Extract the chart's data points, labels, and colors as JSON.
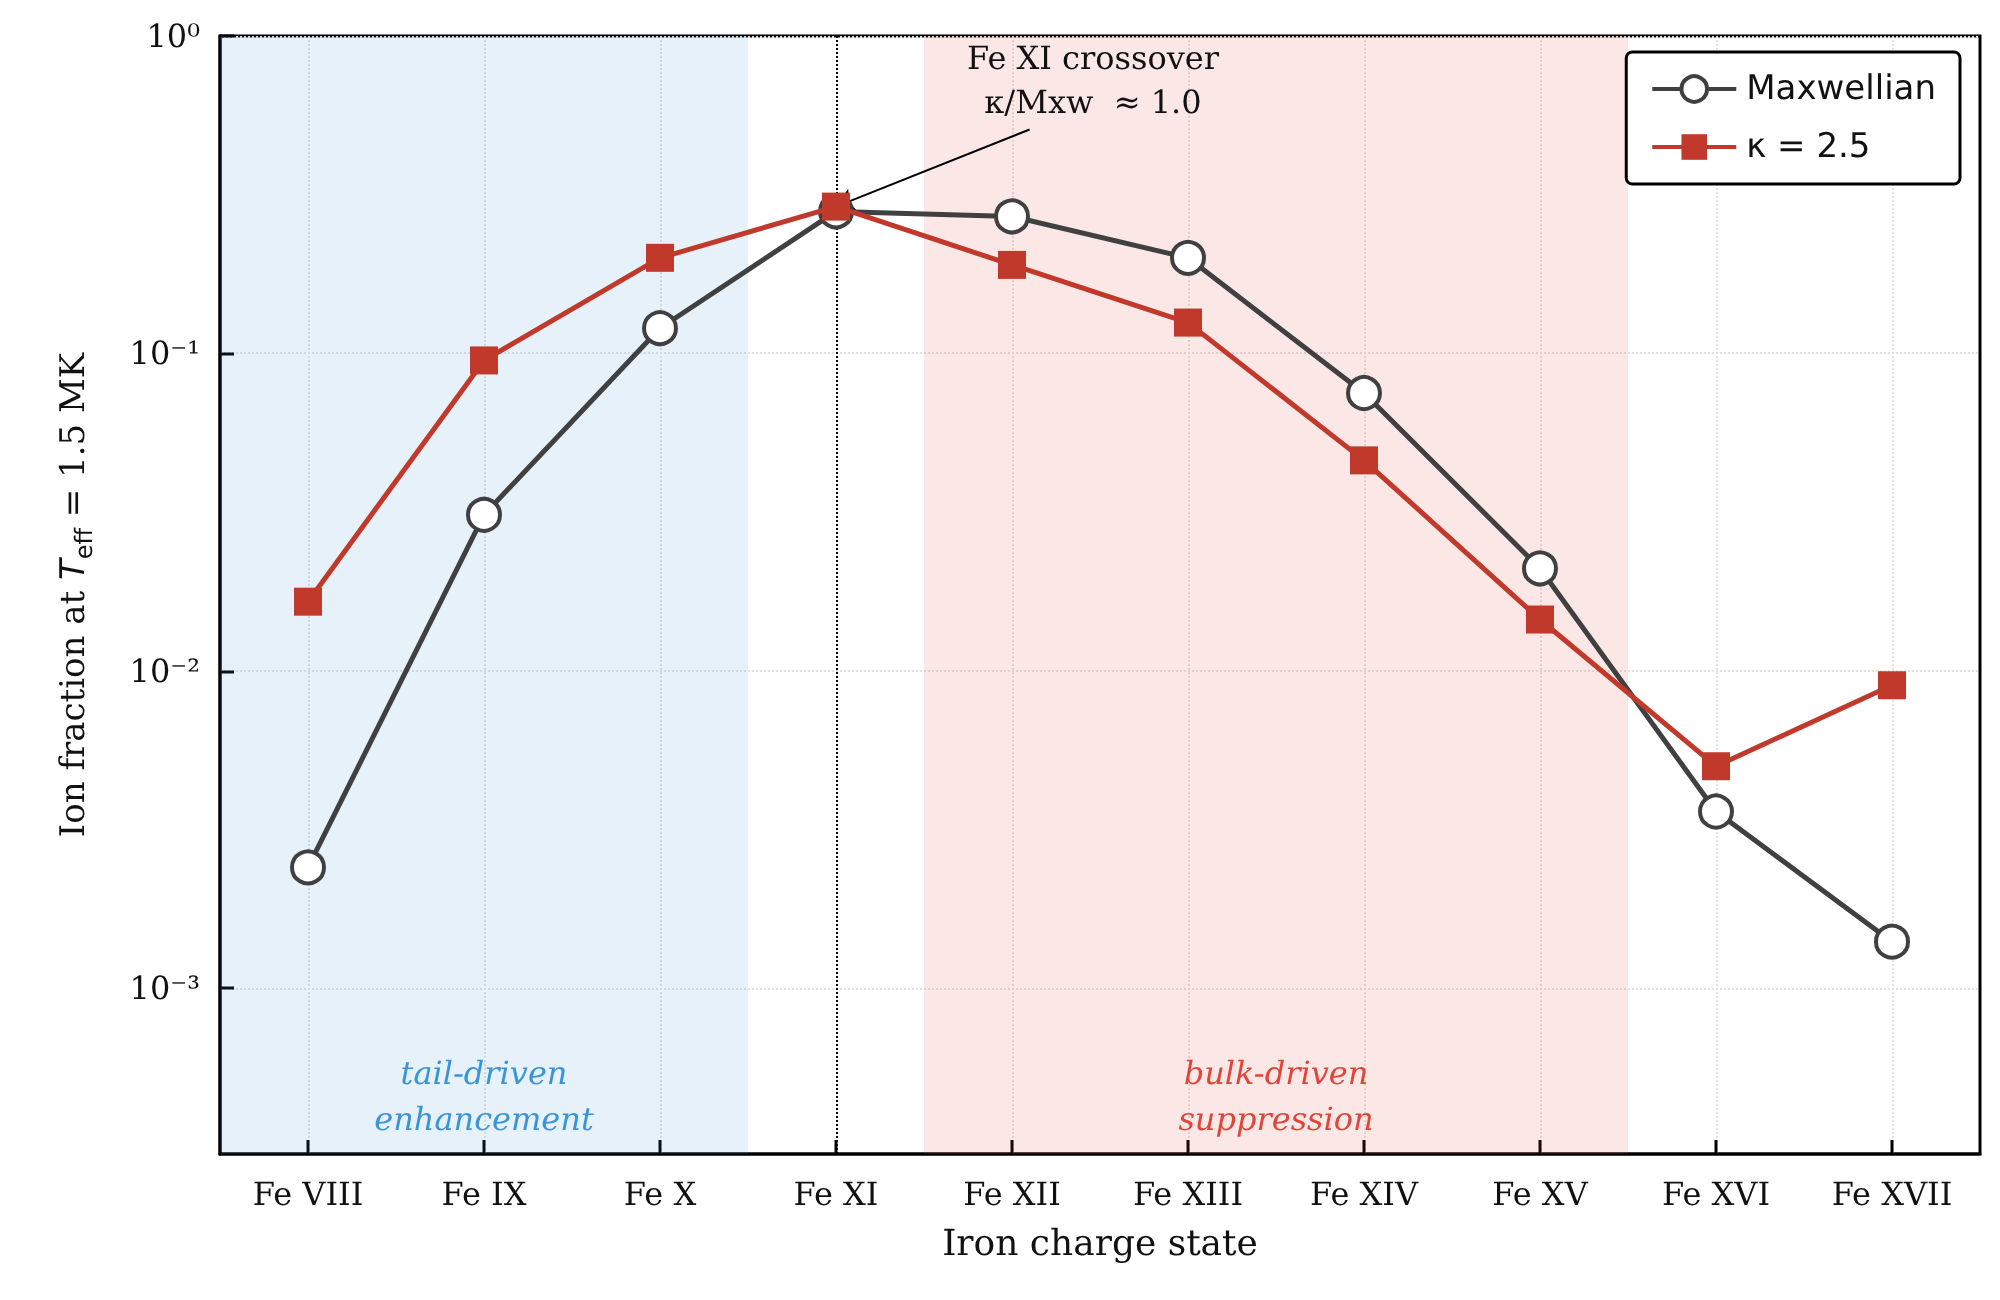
{
  "chart_data": {
    "type": "line",
    "xlabel": "Iron charge state",
    "ylabel": "Ion fraction at T$_{eff}$ = 1.5 MK",
    "categories": [
      "Fe VIII",
      "Fe IX",
      "Fe X",
      "Fe XI",
      "Fe XII",
      "Fe XIII",
      "Fe XIV",
      "Fe XV",
      "Fe XVI",
      "Fe XVII"
    ],
    "series": [
      {
        "name": "Maxwellian",
        "color": "#404040",
        "marker": "circle",
        "values": [
          0.0024,
          0.031,
          0.12,
          0.28,
          0.27,
          0.2,
          0.075,
          0.021,
          0.0036,
          0.0014
        ]
      },
      {
        "name": "κ = 2.5",
        "color": "#c0392b",
        "marker": "square",
        "values": [
          0.0165,
          0.095,
          0.2,
          0.29,
          0.19,
          0.125,
          0.046,
          0.0145,
          0.005,
          0.009
        ]
      }
    ],
    "log": "y",
    "ylim": [
      0.0003,
      1
    ],
    "yticks": [
      {
        "value": 0.001,
        "label": "10⁻³"
      },
      {
        "value": 0.01,
        "label": "10⁻²"
      },
      {
        "value": 0.1,
        "label": "10⁻¹"
      },
      {
        "value": 1,
        "label": "10⁰"
      }
    ],
    "grid": true,
    "legend": "top right",
    "line_style": "solid",
    "bands": [
      {
        "axis": "x",
        "from": "Fe VIII",
        "to": "Fe X",
        "label": "tail-driven\nenhancement",
        "color": "#3a94d8"
      },
      {
        "axis": "x",
        "from": "Fe XII",
        "to": "Fe XV",
        "label": "bulk-driven\nsuppression",
        "color": "#e0453a"
      }
    ],
    "ref_lines": [
      {
        "axis": "x",
        "value": "Fe XI",
        "label": null,
        "color": "#000000",
        "line_style": "dotted"
      }
    ],
    "annotations": [
      {
        "text": "Fe XI crossover\nκ/Mxw  ≈ 1.0",
        "x": "Fe XI",
        "y": 0.29
      }
    ]
  }
}
